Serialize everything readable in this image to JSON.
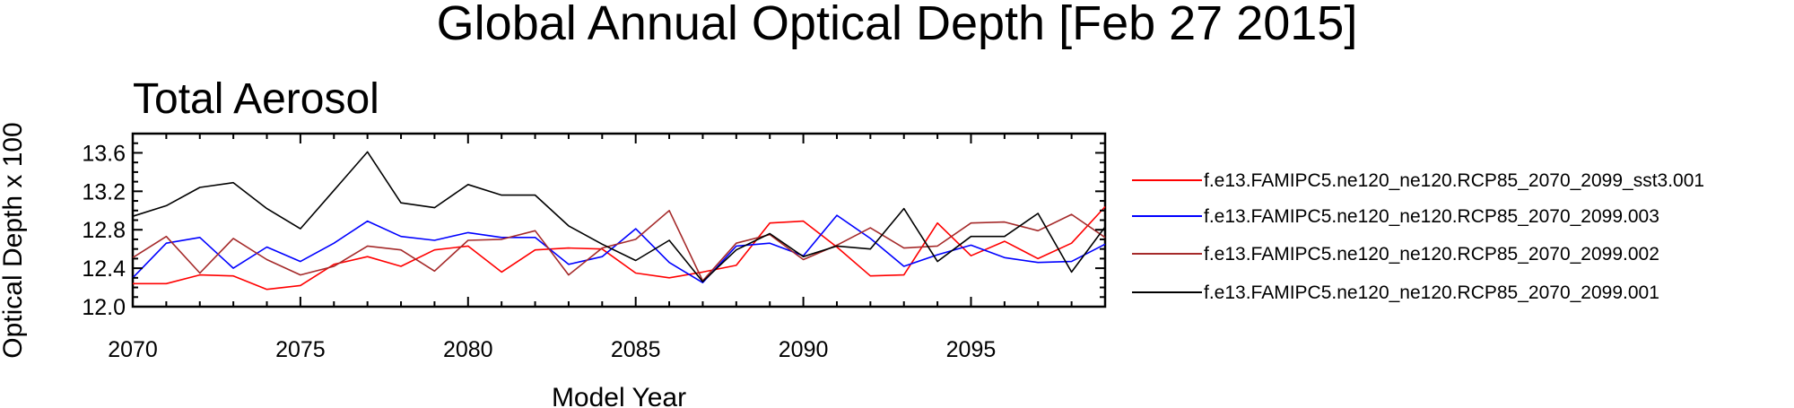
{
  "chart_data": {
    "type": "line",
    "title": "Global Annual Optical Depth [Feb 27 2015]",
    "subtitle": "Total Aerosol",
    "xlabel": "Model Year",
    "ylabel": "Optical Depth x 100",
    "xlim": [
      2070,
      2099
    ],
    "ylim": [
      12.0,
      13.8
    ],
    "xticks": [
      2070,
      2075,
      2080,
      2085,
      2090,
      2095
    ],
    "xtick_labels": [
      "2070",
      "2075",
      "2080",
      "2085",
      "2090",
      "2095"
    ],
    "yticks": [
      12.0,
      12.4,
      12.8,
      13.2,
      13.6
    ],
    "ytick_labels": [
      "12.0",
      "12.4",
      "12.8",
      "13.2",
      "13.6"
    ],
    "grid": false,
    "legend_position": "right",
    "x": [
      2070,
      2071,
      2072,
      2073,
      2074,
      2075,
      2076,
      2077,
      2078,
      2079,
      2080,
      2081,
      2082,
      2083,
      2084,
      2085,
      2086,
      2087,
      2088,
      2089,
      2090,
      2091,
      2092,
      2093,
      2094,
      2095,
      2096,
      2097,
      2098,
      2099
    ],
    "series": [
      {
        "name": "f.e13.FAMIPC5.ne120_ne120.RCP85_2070_2099_sst3.001",
        "color": "#ff0000",
        "values": [
          12.24,
          12.24,
          12.33,
          12.32,
          12.18,
          12.22,
          12.44,
          12.52,
          12.42,
          12.59,
          12.63,
          12.36,
          12.59,
          12.61,
          12.6,
          12.35,
          12.3,
          12.36,
          12.43,
          12.87,
          12.89,
          12.62,
          12.32,
          12.33,
          12.87,
          12.53,
          12.68,
          12.5,
          12.66,
          13.04
        ]
      },
      {
        "name": "f.e13.FAMIPC5.ne120_ne120.RCP85_2070_2099.003",
        "color": "#0000ff",
        "values": [
          12.3,
          12.66,
          12.72,
          12.4,
          12.62,
          12.47,
          12.66,
          12.89,
          12.73,
          12.69,
          12.77,
          12.72,
          12.72,
          12.44,
          12.52,
          12.81,
          12.46,
          12.25,
          12.63,
          12.66,
          12.53,
          12.95,
          12.71,
          12.42,
          12.54,
          12.64,
          12.51,
          12.46,
          12.47,
          12.65
        ]
      },
      {
        "name": "f.e13.FAMIPC5.ne120_ne120.RCP85_2070_2099.002",
        "color": "#a52a2a",
        "values": [
          12.51,
          12.73,
          12.35,
          12.71,
          12.49,
          12.33,
          12.42,
          12.63,
          12.59,
          12.37,
          12.69,
          12.7,
          12.79,
          12.33,
          12.61,
          12.7,
          13.0,
          12.27,
          12.66,
          12.75,
          12.49,
          12.64,
          12.82,
          12.61,
          12.63,
          12.87,
          12.88,
          12.79,
          12.96,
          12.72
        ]
      },
      {
        "name": "f.e13.FAMIPC5.ne120_ne120.RCP85_2070_2099.001",
        "color": "#000000",
        "values": [
          12.94,
          13.05,
          13.24,
          13.29,
          13.02,
          12.81,
          13.21,
          13.61,
          13.08,
          13.03,
          13.27,
          13.16,
          13.16,
          12.84,
          12.65,
          12.48,
          12.69,
          12.26,
          12.59,
          12.76,
          12.52,
          12.63,
          12.6,
          13.02,
          12.47,
          12.73,
          12.73,
          12.97,
          12.36,
          12.83
        ]
      }
    ]
  }
}
